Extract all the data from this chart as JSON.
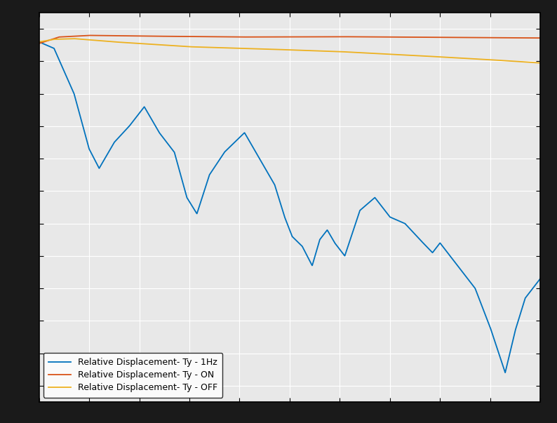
{
  "title": "",
  "xlabel": "",
  "ylabel": "",
  "xlim": [
    0,
    1
  ],
  "ylim": [
    -1.05,
    0.15
  ],
  "grid": true,
  "legend_loc": "lower left",
  "outer_bg_color": "#1a1a1a",
  "plot_bg_color": "#e8e8e8",
  "line_1hz_color": "#0072bd",
  "line_on_color": "#d95319",
  "line_off_color": "#edb120",
  "line_width": 1.3,
  "legend_labels": [
    "Relative Displacement- Ty - 1Hz",
    "Relative Displacement- Ty - ON",
    "Relative Displacement- Ty - OFF"
  ],
  "blue_key_t": [
    0,
    0.03,
    0.07,
    0.1,
    0.12,
    0.15,
    0.18,
    0.21,
    0.24,
    0.27,
    0.295,
    0.315,
    0.34,
    0.37,
    0.41,
    0.44,
    0.47,
    0.49,
    0.505,
    0.525,
    0.545,
    0.56,
    0.575,
    0.59,
    0.61,
    0.64,
    0.67,
    0.7,
    0.73,
    0.76,
    0.785,
    0.8,
    0.83,
    0.87,
    0.9,
    0.93,
    0.95,
    0.97,
    1.0
  ],
  "blue_key_v": [
    0.06,
    0.04,
    -0.1,
    -0.27,
    -0.33,
    -0.25,
    -0.2,
    -0.14,
    -0.22,
    -0.28,
    -0.42,
    -0.47,
    -0.35,
    -0.28,
    -0.22,
    -0.3,
    -0.38,
    -0.48,
    -0.54,
    -0.57,
    -0.63,
    -0.55,
    -0.52,
    -0.56,
    -0.6,
    -0.46,
    -0.42,
    -0.48,
    -0.5,
    -0.55,
    -0.59,
    -0.56,
    -0.62,
    -0.7,
    -0.82,
    -0.96,
    -0.83,
    -0.73,
    -0.67
  ],
  "red_key_t": [
    0,
    0.04,
    0.1,
    0.2,
    0.4,
    0.6,
    0.8,
    1.0
  ],
  "red_key_v": [
    0.055,
    0.075,
    0.08,
    0.078,
    0.075,
    0.076,
    0.074,
    0.072
  ],
  "yel_key_t": [
    0,
    0.03,
    0.07,
    0.15,
    0.3,
    0.45,
    0.6,
    0.75,
    0.9,
    1.0
  ],
  "yel_key_v": [
    0.06,
    0.068,
    0.07,
    0.06,
    0.045,
    0.038,
    0.03,
    0.018,
    0.005,
    -0.005
  ],
  "figsize": [
    7.94,
    6.03
  ],
  "dpi": 100
}
